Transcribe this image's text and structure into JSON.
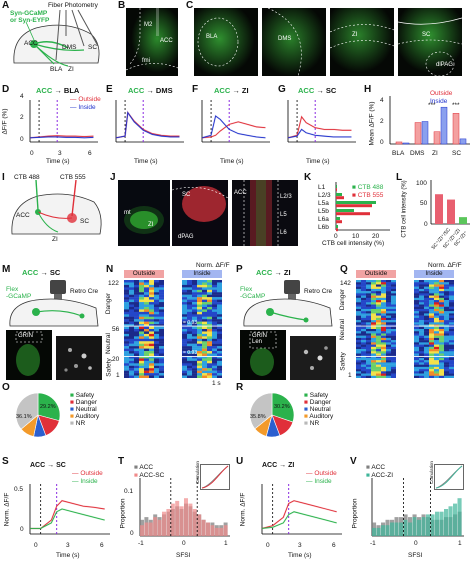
{
  "panels": {
    "A": {
      "letter": "A",
      "label_left": "Syn-GCaMP\nor Syn-EYFP",
      "label_top": "Fiber Photometry",
      "regions": [
        "ACC",
        "DMS",
        "SC",
        "BLA",
        "ZI"
      ]
    },
    "B": {
      "letter": "B",
      "labels": [
        "M2",
        "ACC",
        "fmi"
      ]
    },
    "C": {
      "letter": "C",
      "labels": [
        "BLA",
        "DMS",
        "ZI",
        "SC",
        "dlPAG"
      ]
    },
    "D": {
      "letter": "D",
      "title_src": "ACC",
      "title_dst": "BLA",
      "legend": [
        "Outside",
        "Inside"
      ],
      "ylabel": "ΔF/F (%)",
      "xlabel": "Time (s)",
      "yticks": [
        "4",
        "2",
        "0"
      ],
      "xticks": [
        "0",
        "3",
        "6"
      ]
    },
    "E": {
      "letter": "E",
      "title_src": "ACC",
      "title_dst": "DMS"
    },
    "F": {
      "letter": "F",
      "title_src": "ACC",
      "title_dst": "ZI"
    },
    "G": {
      "letter": "G",
      "title_src": "ACC",
      "title_dst": "SC"
    },
    "H": {
      "letter": "H",
      "legend": [
        "Outside",
        "Inside"
      ],
      "ylabel": "Mean ΔF/F (%)",
      "yticks": [
        "4",
        "2",
        "0"
      ],
      "categories": [
        "BLA",
        "DMS",
        "ZI",
        "SC"
      ],
      "sig": [
        "***",
        "***"
      ]
    },
    "I": {
      "letter": "I",
      "labels": [
        "CTB 488",
        "CTB 555",
        "ACC",
        "SC",
        "ZI"
      ]
    },
    "J": {
      "letter": "J",
      "labels": [
        "mt",
        "ZI",
        "SC",
        "dPAG",
        "ACC",
        "L2/3",
        "L5",
        "L6"
      ]
    },
    "K": {
      "letter": "K",
      "layers": [
        "L1",
        "L2/3",
        "L5a",
        "L5b",
        "L6a",
        "L6b"
      ],
      "legend": [
        "CTB 488",
        "CTB 555"
      ],
      "xlabel": "CTB cell intensity (%)",
      "xticks": [
        "0",
        "10",
        "20"
      ]
    },
    "L": {
      "letter": "L",
      "ylabel": "CTB cell intensity (%)",
      "yticks": [
        "100",
        "50",
        "0"
      ],
      "categories": [
        "SC⁺/ZI⁺/SC",
        "SC⁺/ZI⁺/ZI",
        "SC⁺/ZI⁺"
      ]
    },
    "M": {
      "letter": "M",
      "title_src": "ACC",
      "title_dst": "SC",
      "labels": [
        "Flex\n-GCaMP",
        "Retro Cre",
        "GRIN"
      ]
    },
    "N": {
      "letter": "N",
      "header": [
        "Outside",
        "Inside"
      ],
      "cbar_title": "Norm. ΔF/F",
      "cbar_ticks": [
        "1",
        "0"
      ],
      "ylabel": "Neuron",
      "yticks": [
        "122",
        "56",
        "20",
        "1"
      ],
      "groups": [
        "Danger",
        "Neutral",
        "Safety"
      ],
      "scalebar": "1 s",
      "r_vals": [
        "r = 0.93",
        "r = 0.93"
      ]
    },
    "O": {
      "letter": "O",
      "legend": [
        "Safety",
        "Danger",
        "Neutral",
        "Auditory",
        "NR"
      ],
      "pcts": [
        "36.1%",
        "29.2%"
      ]
    },
    "P": {
      "letter": "P",
      "title_src": "ACC",
      "title_dst": "ZI",
      "labels": [
        "Flex\n-GCaMP",
        "Retro Cre",
        "GRIN\nLen"
      ]
    },
    "Q": {
      "letter": "Q",
      "header": [
        "Outside",
        "Inside"
      ],
      "cbar_title": "Norm. ΔF/F",
      "cbar_ticks": [
        "1",
        "0"
      ],
      "yticks": [
        "142",
        "1"
      ],
      "groups": [
        "Danger",
        "Neutral",
        "Safety"
      ]
    },
    "R": {
      "letter": "R",
      "legend": [
        "Safety",
        "Danger",
        "Neutral",
        "Auditory",
        "NR"
      ],
      "pcts": [
        "35.8%",
        "30.2%"
      ]
    },
    "S": {
      "letter": "S",
      "title_src": "ACC",
      "title_dst": "SC",
      "legend": [
        "Outside",
        "Inside"
      ],
      "ylabel": "Norm. ΔF/F",
      "xlabel": "Time (s)",
      "yticks": [
        "0.5",
        "0"
      ],
      "xticks": [
        "0",
        "3",
        "6"
      ]
    },
    "T": {
      "letter": "T",
      "legend": [
        "ACC",
        "ACC-SC"
      ],
      "ylabel": "Proportion",
      "xlabel": "SFSI",
      "yticks": [
        "0.1",
        "0"
      ],
      "xticks": [
        "-1",
        "0",
        "1"
      ],
      "inset_ylabel": "Cumulation"
    },
    "U": {
      "letter": "U",
      "title_src": "ACC",
      "title_dst": "ZI",
      "legend": [
        "Outside",
        "Inside"
      ],
      "ylabel": "Norm. ΔF/F",
      "xlabel": "Time (s)",
      "xticks": [
        "0",
        "3",
        "6"
      ]
    },
    "V": {
      "letter": "V",
      "legend": [
        "ACC",
        "ACC-ZI"
      ],
      "ylabel": "Proportion",
      "xlabel": "SFSI",
      "xticks": [
        "-1",
        "0",
        "1"
      ],
      "inset_ylabel": "Cumulation"
    }
  },
  "chart_data": [
    {
      "id": "D",
      "type": "line",
      "x": [
        -1,
        0,
        1,
        2,
        3,
        4,
        5,
        6
      ],
      "series": [
        {
          "name": "Outside",
          "values": [
            0,
            0.1,
            0.2,
            0.25,
            0.2,
            0.2,
            0.15,
            0.2
          ]
        },
        {
          "name": "Inside",
          "values": [
            0,
            0.05,
            0.1,
            0.1,
            0.05,
            0.05,
            0.0,
            0.05
          ]
        }
      ],
      "ylim": [
        -0.5,
        4.5
      ],
      "xlim": [
        -1,
        6.5
      ]
    },
    {
      "id": "E",
      "type": "line",
      "x": [
        -1,
        0,
        0.3,
        1,
        2,
        3,
        4,
        5,
        6
      ],
      "series": [
        {
          "name": "Outside",
          "values": [
            0,
            0.2,
            3.0,
            2.0,
            1.0,
            0.5,
            0.3,
            0.2,
            0.2
          ]
        },
        {
          "name": "Inside",
          "values": [
            0,
            0.2,
            3.0,
            1.9,
            0.9,
            0.4,
            0.2,
            0.1,
            0.1
          ]
        }
      ],
      "ylim": [
        -0.5,
        4.5
      ],
      "xlim": [
        -1,
        6.5
      ]
    },
    {
      "id": "F",
      "type": "line",
      "x": [
        -1,
        0,
        0.5,
        1,
        2,
        3,
        4,
        5,
        6
      ],
      "series": [
        {
          "name": "Outside",
          "values": [
            0,
            0.1,
            0.3,
            0.8,
            1.6,
            1.9,
            1.6,
            1.3,
            1.2
          ]
        },
        {
          "name": "Inside",
          "values": [
            0,
            0.3,
            2.6,
            2.2,
            1.0,
            0.5,
            0.3,
            0.1,
            0.0
          ]
        }
      ],
      "ylim": [
        -0.5,
        4.5
      ],
      "xlim": [
        -1,
        6.5
      ]
    },
    {
      "id": "G",
      "type": "line",
      "x": [
        -1,
        0,
        0.5,
        1,
        2,
        3,
        4,
        5,
        6
      ],
      "series": [
        {
          "name": "Outside",
          "values": [
            0,
            0.3,
            2.5,
            1.8,
            1.2,
            1.0,
            1.0,
            0.9,
            0.9
          ]
        },
        {
          "name": "Inside",
          "values": [
            0,
            0.2,
            1.0,
            0.6,
            0.3,
            0.2,
            0.1,
            0.1,
            0.1
          ]
        }
      ],
      "ylim": [
        -0.5,
        4.5
      ],
      "xlim": [
        -1,
        6.5
      ]
    },
    {
      "id": "H",
      "type": "bar",
      "categories": [
        "BLA",
        "DMS",
        "ZI",
        "SC"
      ],
      "series": [
        {
          "name": "Outside",
          "values": [
            0.2,
            2.1,
            1.2,
            3.0
          ]
        },
        {
          "name": "Inside",
          "values": [
            0.1,
            2.2,
            3.6,
            0.5
          ]
        }
      ],
      "ylim": [
        0,
        4.5
      ]
    },
    {
      "id": "K",
      "type": "bar",
      "categories": [
        "L1",
        "L2/3",
        "L5a",
        "L5b",
        "L6a",
        "L6b"
      ],
      "series": [
        {
          "name": "CTB 488",
          "values": [
            0.5,
            3,
            20,
            9,
            2,
            1
          ]
        },
        {
          "name": "CTB 555",
          "values": [
            0.5,
            4,
            18,
            17,
            3,
            1
          ]
        }
      ],
      "xlim": [
        0,
        25
      ]
    },
    {
      "id": "L",
      "type": "bar",
      "categories": [
        "SC⁺/ZI⁺/SC",
        "SC⁺/ZI⁺/ZI",
        "SC⁺/ZI⁺"
      ],
      "values": [
        78,
        64,
        18
      ],
      "ylim": [
        0,
        110
      ]
    },
    {
      "id": "O",
      "type": "pie",
      "categories": [
        "Safety",
        "Danger",
        "Neutral",
        "Auditory",
        "NR"
      ],
      "values": [
        29.2,
        15,
        9,
        10.7,
        36.1
      ]
    },
    {
      "id": "R",
      "type": "pie",
      "categories": [
        "Safety",
        "Danger",
        "Neutral",
        "Auditory",
        "NR"
      ],
      "values": [
        30.2,
        14,
        10,
        10,
        35.8
      ]
    },
    {
      "id": "S",
      "type": "line",
      "x": [
        -1,
        0,
        1,
        1.5,
        2,
        3,
        4,
        5,
        6
      ],
      "series": [
        {
          "name": "Outside",
          "values": [
            0.0,
            0.0,
            0.15,
            0.4,
            0.5,
            0.45,
            0.4,
            0.38,
            0.35
          ]
        },
        {
          "name": "Inside",
          "values": [
            0.0,
            0.0,
            0.1,
            0.3,
            0.35,
            0.3,
            0.25,
            0.2,
            0.15
          ]
        }
      ],
      "ylim": [
        -0.1,
        0.8
      ],
      "xlim": [
        -1,
        6.5
      ]
    },
    {
      "id": "U",
      "type": "line",
      "x": [
        -1,
        0,
        1,
        1.5,
        2,
        3,
        4,
        5,
        6
      ],
      "series": [
        {
          "name": "Outside",
          "values": [
            0.0,
            0.05,
            0.2,
            0.45,
            0.5,
            0.45,
            0.4,
            0.35,
            0.3
          ]
        },
        {
          "name": "Inside",
          "values": [
            0.0,
            0.02,
            0.1,
            0.25,
            0.3,
            0.25,
            0.2,
            0.15,
            0.1
          ]
        }
      ],
      "ylim": [
        -0.1,
        0.8
      ],
      "xlim": [
        -1,
        6.5
      ]
    },
    {
      "id": "T",
      "type": "bar",
      "x": [
        -1,
        -0.9,
        -0.8,
        -0.7,
        -0.6,
        -0.5,
        -0.4,
        -0.3,
        -0.2,
        -0.1,
        0,
        0.1,
        0.2,
        0.3,
        0.4,
        0.5,
        0.6,
        0.7,
        0.8,
        0.9
      ],
      "series": [
        {
          "name": "ACC",
          "values": [
            0.06,
            0.07,
            0.06,
            0.08,
            0.07,
            0.08,
            0.09,
            0.1,
            0.11,
            0.1,
            0.12,
            0.11,
            0.09,
            0.08,
            0.06,
            0.05,
            0.05,
            0.04,
            0.04,
            0.05
          ]
        },
        {
          "name": "ACC-SC",
          "values": [
            0.04,
            0.05,
            0.05,
            0.07,
            0.06,
            0.09,
            0.1,
            0.12,
            0.13,
            0.11,
            0.14,
            0.12,
            0.1,
            0.08,
            0.06,
            0.05,
            0.04,
            0.03,
            0.03,
            0.04
          ]
        }
      ],
      "ylim": [
        0,
        0.2
      ]
    },
    {
      "id": "V",
      "type": "bar",
      "x": [
        -1,
        -0.9,
        -0.8,
        -0.7,
        -0.6,
        -0.5,
        -0.4,
        -0.3,
        -0.2,
        -0.1,
        0,
        0.1,
        0.2,
        0.3,
        0.4,
        0.5,
        0.6,
        0.7,
        0.8,
        0.9
      ],
      "series": [
        {
          "name": "ACC",
          "values": [
            0.05,
            0.04,
            0.05,
            0.06,
            0.06,
            0.07,
            0.07,
            0.08,
            0.07,
            0.08,
            0.07,
            0.08,
            0.07,
            0.06,
            0.06,
            0.06,
            0.07,
            0.07,
            0.08,
            0.09
          ]
        },
        {
          "name": "ACC-ZI",
          "values": [
            0.03,
            0.03,
            0.04,
            0.04,
            0.05,
            0.05,
            0.05,
            0.06,
            0.05,
            0.07,
            0.06,
            0.07,
            0.08,
            0.08,
            0.09,
            0.09,
            0.1,
            0.11,
            0.12,
            0.14
          ]
        }
      ],
      "ylim": [
        0,
        0.2
      ]
    }
  ]
}
